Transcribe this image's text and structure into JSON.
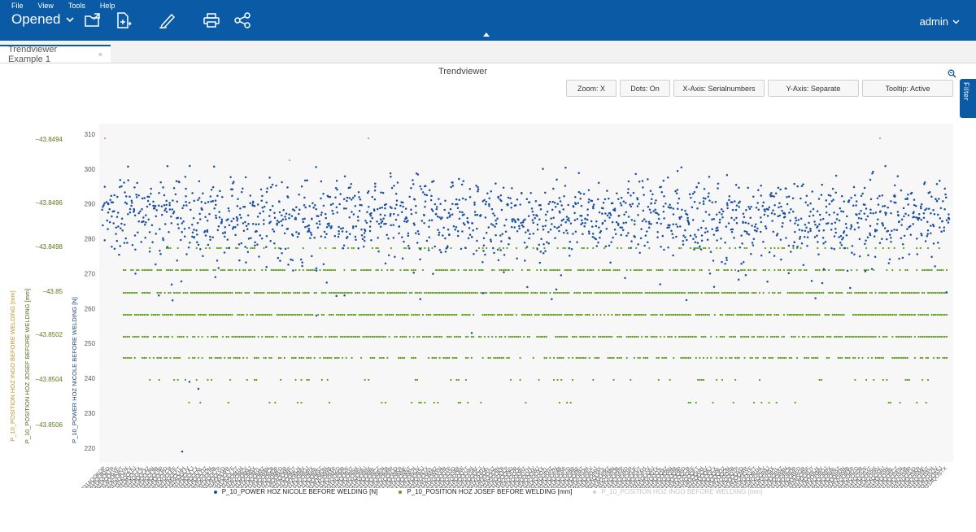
{
  "menu": [
    "File",
    "View",
    "Tools",
    "Help"
  ],
  "app": {
    "opened_label": "Opened",
    "user": "admin"
  },
  "toolbar_icons": [
    "folder-open-icon",
    "new-file-icon",
    "edit-icon",
    "print-icon",
    "share-icon"
  ],
  "tab": {
    "label": "Trendviewer Example 1",
    "close": "×"
  },
  "widget": {
    "title": "Trendviewer",
    "filter_label": "Filter",
    "controls": [
      {
        "label": "Zoom: X",
        "width": 62
      },
      {
        "label": "Dots: On",
        "width": 62
      },
      {
        "label": "X-Axis: Serialnumbers",
        "width": 112
      },
      {
        "label": "Y-Axis: Separate",
        "width": 112
      },
      {
        "label": "Tooltip: Active",
        "width": 112
      }
    ]
  },
  "colors": {
    "brand": "#0a5aa6",
    "series_power": "#1a4fa0",
    "series_josef": "#5a9e1a",
    "series_ingo": "#c8a040",
    "plot_bg": "#f7f7f7"
  },
  "chart_data": {
    "type": "scatter",
    "y_axes": [
      {
        "name": "P_10_POWER HOZ NICOLE BEFORE WELDING [N]",
        "ticks": [
          220,
          230,
          240,
          250,
          260,
          270,
          280,
          290,
          300,
          310
        ],
        "range": [
          216,
          313
        ]
      },
      {
        "name": "P_10_POSITION HOZ JOSEF BEFORE WELDING [mm]",
        "ticks": [
          -43.8494,
          -43.8496,
          -43.8498,
          -43.85,
          -43.8502,
          -43.8504,
          -43.8506
        ],
        "tick_labels": [
          "-43.8494",
          "-43.8496",
          "-43.8498",
          "-43.85",
          "-43.8502",
          "-43.8504",
          "-43.8506"
        ]
      },
      {
        "name": "P_10_POSITION HOZ INGO BEFORE WELDING [mm]"
      }
    ],
    "x_tick_labels": [
      "1331AQOKQP",
      "1331AQOKSD",
      "1331AQOKTR",
      "1331AQOKVF",
      "1331AQOKWT",
      "1331AQOKYH",
      "1331AQOKZV",
      "1331AQOL0J",
      "1331AQOL1X",
      "1331AQOL3L",
      "1331AQOL4Z",
      "1331AQOL6N",
      "1331AQOL8B",
      "1331AQOL9P",
      "1331AQOLBD",
      "1331AQOLCR",
      "1331AQOLEF",
      "1331AQOLFT",
      "1331AQOLHH",
      "1331AQOLIV",
      "1331AQOLKJ",
      "1331AQOLLX",
      "1331AQOLNL",
      "1331AQOLOZ",
      "1331AQOLQN",
      "1331AQOLSB",
      "1331AQOLTP",
      "1331AQOLVD",
      "1331AQOLWR",
      "1331AQOLYF",
      "1331AQOLZT",
      "1331AQOM1H",
      "1331AQOM2V",
      "1331AQOM4J",
      "1331AQOM5X",
      "1331AQOM7L",
      "1331AQOM8Z",
      "1331AQOMAN",
      "1331AQOMCB",
      "1331AQOMDP",
      "1331AQOMFD",
      "1331AQOMGR",
      "1331AQOMIF",
      "1331AQOMJT",
      "1331AQOMLH",
      "1331AQOMMV",
      "1331AQOMOJ",
      "1331AQOMPX",
      "1331AQOMRL",
      "1331AQOMSZ",
      "1331AQOMUN",
      "1331AQOMWB",
      "1331AQOMXP",
      "1331AQOMZD",
      "1331AQON0R",
      "1331AQON2F",
      "1331AQON3T",
      "1331AQON5H",
      "1331AQON6V",
      "1331AQON8J",
      "1331AQON9X",
      "1331AQONBL",
      "1331AQONCZ",
      "1331AQONEN",
      "1331AQONGB",
      "1331AQONHP",
      "1331AQONJD",
      "1331AQONKR",
      "1331AQONMF",
      "1331AQONNT",
      "1331AQONPH",
      "1331AQONQV",
      "1331AQONSJ",
      "1331AQONTX",
      "1331AQONVL",
      "1331AQONWZ",
      "1331AQONYN",
      "1331AQOO0B",
      "1331AQOO1P",
      "1331AQOO3D",
      "1331AQOO4R",
      "1331AQOO6F",
      "1331AQOO7T",
      "1331AQOO9H",
      "1331AQOOAV",
      "1331AQOOCJ",
      "1331AQOODX",
      "1331AQOOFL",
      "1331AQOOGZ",
      "1331AQOOIN",
      "1331AQOOKB",
      "1331AQOOLP",
      "1331AQOOND",
      "1331AQOOOR",
      "1331AQOOQF",
      "1331AQOORT",
      "1331AQOOTH",
      "1331AQOOUV",
      "1331AQOOWJ",
      "1331AQOOXX",
      "1331AQOOZL",
      "1331AQOP0Z",
      "1331AQOP2N",
      "1331AQOP4B",
      "1331AQOP5P",
      "1331AQOP7D",
      "1331AQOP8R",
      "1331AQOPAF",
      "1331AQOPBT",
      "1331AQOPDH",
      "1331AQOPEV",
      "1331AQOPGJ",
      "1331AQOPHX",
      "1331AQOPJL",
      "1331AQOPKZ",
      "1331AQOPMN",
      "1331AQOPOB",
      "1331AQOPPP",
      "1331AQOPRD",
      "1331AQOPSR",
      "1331AQOPUF",
      "1331AQOPVT",
      "1331AQOPXH",
      "1331AQOPYV",
      "1331AQOQ0J",
      "1331AQOQ1X",
      "1331AQOQ3L",
      "1331AQOQ4Z",
      "1331AQOQ6N",
      "1331AQOQ8B",
      "1331AQOQ9P",
      "1331AQOQBD",
      "1331AQOQCR",
      "1331AQOQEF",
      "1331AQOQFT",
      "1331AQOQHH",
      "1331AQOQIV",
      "1331AQOQKJ",
      "1331AQOQLX",
      "1331AQOQNL",
      "1331AQOQOZ",
      "1331AQOQQN",
      "1331AQOQSB",
      "1331AQOQTP",
      "1331AQOQVD",
      "1331AQOQWR",
      "1331AQOQYF",
      "1331AQOQZT",
      "1331AQOR1H",
      "1331AQOR2V",
      "1331AQOR4J",
      "1331AQOR5X",
      "1331AQOR7L",
      "1331AQOR8Z",
      "1331AQORAN",
      "1331AQORCB",
      "1331AQORDP",
      "1331AQORFD",
      "1331AQORGR",
      "1331AQORIF",
      "1331AQORJT",
      "1331AQORLH",
      "1331AQORMV",
      "1331AQOROJ",
      "1331AQORPX",
      "1331AQORRL",
      "1331AQORSZ",
      "1331AQORUN",
      "1331AQORWB",
      "1331AQORXP",
      "1331AQORZD",
      "1331AQOS0R",
      "1331AQOS2F",
      "1331AQOS3T",
      "1331AQOS5H",
      "1331AQOS6V",
      "1331AQOS8J",
      "1331AQOS9X",
      "1331AQOSBL",
      "1331AQOSCZ",
      "1331AQOSEN",
      "1331AQOSGB",
      "1331AQOSHP",
      "1331AQOSJD",
      "1331AQOSKR",
      "1331AQOSMF",
      "1331AQOSNT",
      "1331AQOSPH",
      "1331AQOSQV",
      "1331AQOSSJ",
      "1331AQOSTX"
    ],
    "series": [
      {
        "name": "P_10_POWER HOZ NICOLE BEFORE WELDING [N]",
        "marker": "dot",
        "distribution": {
          "center": 286,
          "spread": 8,
          "min": 219,
          "max": 310
        }
      },
      {
        "name": "P_10_POSITION HOZ JOSEF BEFORE WELDING [mm]",
        "marker": "dot",
        "levels": [
          -43.8497,
          -43.8498,
          -43.8499,
          -43.85,
          -43.8501,
          -43.8502,
          -43.8503,
          -43.8504,
          -43.8505
        ]
      },
      {
        "name": "P_10_POSITION HOZ INGO BEFORE WELDING [mm]",
        "hidden": true
      }
    ],
    "legend": "bottom-center",
    "grid": false
  }
}
